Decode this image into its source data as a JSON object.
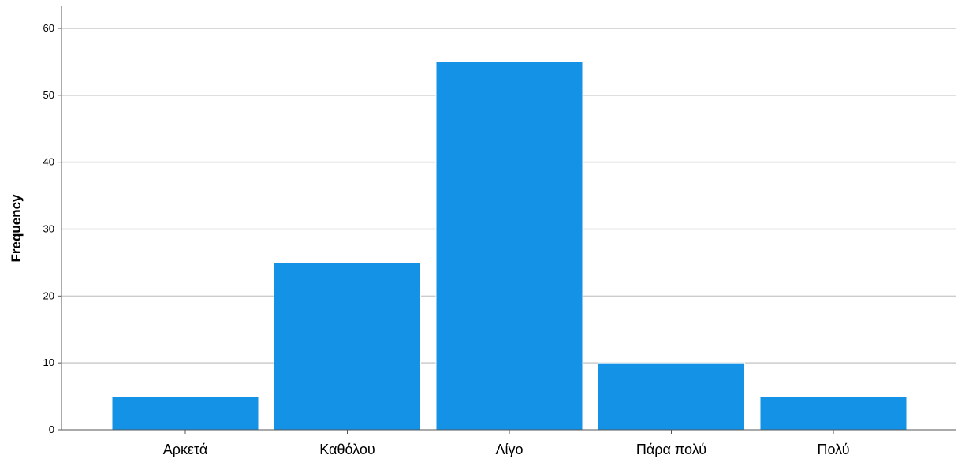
{
  "chart_data": {
    "type": "bar",
    "title": "",
    "xlabel": "",
    "ylabel": "Frequency",
    "categories": [
      "Αρκετά",
      "Καθόλου",
      "Λίγο",
      "Πάρα πολύ",
      "Πολύ"
    ],
    "values": [
      5,
      25,
      55,
      10,
      5
    ],
    "ylim": [
      0,
      60
    ],
    "yticks": [
      0,
      10,
      20,
      30,
      40,
      50,
      60
    ],
    "grid": true,
    "legend": "none",
    "colors": {
      "bar": "#1492E6",
      "grid": "#CCCCCC",
      "axis": "#555555"
    }
  }
}
